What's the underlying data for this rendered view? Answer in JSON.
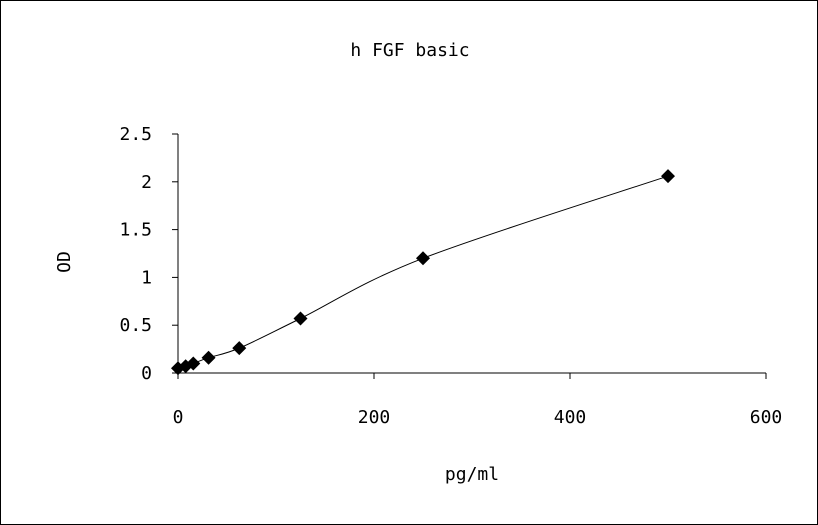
{
  "chart_data": {
    "type": "scatter",
    "title": "h FGF basic",
    "xlabel": "pg/ml",
    "ylabel": "OD",
    "xlim": [
      0,
      600
    ],
    "ylim": [
      0,
      2.5
    ],
    "x_ticks": [
      0,
      200,
      400,
      600
    ],
    "x_tick_labels": [
      "0",
      "200",
      "400",
      "600"
    ],
    "y_ticks": [
      0,
      0.5,
      1,
      1.5,
      2,
      2.5
    ],
    "y_tick_labels": [
      "0",
      "0.5",
      "1",
      "1.5",
      "2",
      "2.5"
    ],
    "grid": false,
    "legend": "none",
    "marker": "diamond",
    "line": "smooth",
    "series": [
      {
        "x": [
          0,
          7.8,
          15.6,
          31.2,
          62.5,
          125,
          250,
          500
        ],
        "values": [
          0.05,
          0.07,
          0.1,
          0.16,
          0.26,
          0.57,
          1.2,
          2.06
        ]
      }
    ],
    "colors": {
      "marker": "#000000",
      "line": "#000000",
      "axis": "#000000"
    }
  }
}
